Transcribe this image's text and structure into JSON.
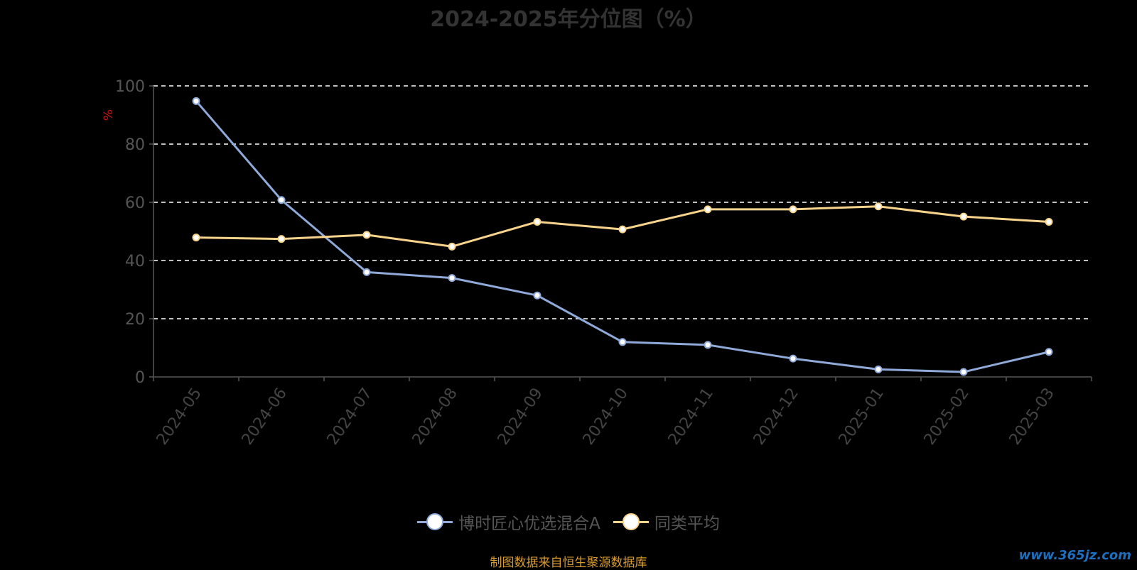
{
  "chart_data": {
    "type": "line",
    "title": "2024-2025年分位图（%）",
    "ylabel": "%",
    "xlabel": "",
    "ylim": [
      0,
      100
    ],
    "yticks": [
      0,
      20,
      40,
      60,
      80,
      100
    ],
    "categories": [
      "2024-05",
      "2024-06",
      "2024-07",
      "2024-08",
      "2024-09",
      "2024-10",
      "2024-11",
      "2024-12",
      "2025-01",
      "2025-02",
      "2025-03"
    ],
    "series": [
      {
        "name": "博时匠心优选混合A",
        "color": "#8fa9d8",
        "values": [
          94.8,
          60.8,
          36.0,
          34.0,
          28.0,
          12.0,
          11.0,
          6.3,
          2.6,
          1.7,
          8.6
        ]
      },
      {
        "name": "同类平均",
        "color": "#f7d38c",
        "values": [
          47.9,
          47.4,
          48.8,
          44.8,
          53.3,
          50.7,
          57.6,
          57.6,
          58.6,
          55.1,
          53.3
        ]
      }
    ],
    "grid": true,
    "legend_position": "bottom"
  },
  "footer": {
    "source": "制图数据来自恒生聚源数据库",
    "watermark": "www.365jz.com"
  }
}
